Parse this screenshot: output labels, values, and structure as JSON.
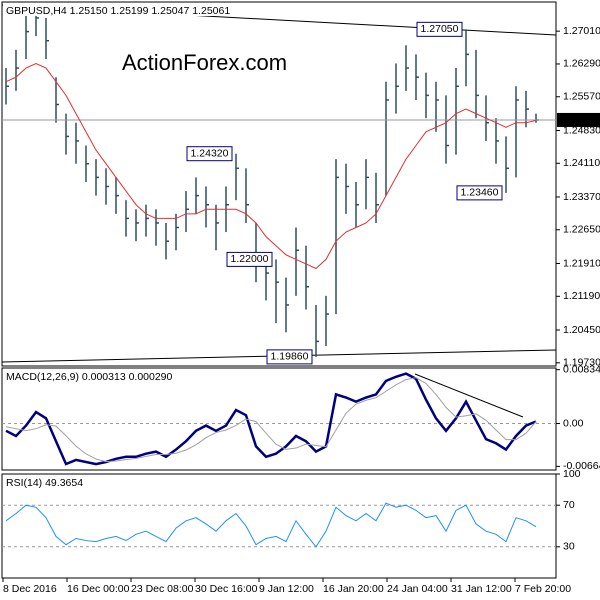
{
  "chart_data": [
    {
      "type": "hlc",
      "title": "GBPUSD,H4  1.25150 1.25199 1.25047 1.25061",
      "watermark": "ActionForex.com",
      "hlc": {
        "color": "#2f4f5f",
        "high": [
          1.262,
          1.266,
          1.274,
          1.276,
          1.273,
          1.26,
          1.252,
          1.25,
          1.245,
          1.242,
          1.24,
          1.238,
          1.233,
          1.231,
          1.232,
          1.231,
          1.228,
          1.23,
          1.235,
          1.238,
          1.236,
          1.232,
          1.236,
          1.2432,
          1.24,
          1.228,
          1.221,
          1.22,
          1.216,
          1.227,
          1.223,
          1.21,
          1.212,
          1.242,
          1.241,
          1.237,
          1.242,
          1.239,
          1.259,
          1.263,
          1.267,
          1.265,
          1.261,
          1.259,
          1.256,
          1.262,
          1.2705,
          1.266,
          1.256,
          1.251,
          1.247,
          1.258,
          1.257,
          1.252
        ],
        "low": [
          1.254,
          1.257,
          1.264,
          1.269,
          1.264,
          1.25,
          1.243,
          1.241,
          1.237,
          1.234,
          1.232,
          1.23,
          1.225,
          1.224,
          1.225,
          1.223,
          1.22,
          1.222,
          1.226,
          1.23,
          1.227,
          1.222,
          1.226,
          1.233,
          1.228,
          1.215,
          1.211,
          1.206,
          1.204,
          1.212,
          1.209,
          1.1986,
          1.201,
          1.208,
          1.23,
          1.227,
          1.231,
          1.228,
          1.234,
          1.252,
          1.257,
          1.255,
          1.251,
          1.248,
          1.241,
          1.243,
          1.258,
          1.251,
          1.246,
          1.241,
          1.2346,
          1.238,
          1.249,
          1.25
        ],
        "close": [
          1.258,
          1.262,
          1.27,
          1.273,
          1.268,
          1.254,
          1.247,
          1.246,
          1.241,
          1.238,
          1.236,
          1.234,
          1.229,
          1.228,
          1.229,
          1.228,
          1.224,
          1.227,
          1.231,
          1.234,
          1.232,
          1.228,
          1.232,
          1.24,
          1.232,
          1.219,
          1.217,
          1.215,
          1.21,
          1.222,
          1.214,
          1.202,
          1.208,
          1.238,
          1.236,
          1.232,
          1.238,
          1.232,
          1.255,
          1.258,
          1.262,
          1.26,
          1.256,
          1.255,
          1.245,
          1.258,
          1.265,
          1.256,
          1.25,
          1.246,
          1.24,
          1.255,
          1.253,
          1.2506
        ]
      },
      "lines": [
        {
          "color": "#e03030",
          "values": [
            1.259,
            1.26,
            1.262,
            1.263,
            1.262,
            1.259,
            1.256,
            1.252,
            1.248,
            1.244,
            1.241,
            1.238,
            1.235,
            1.232,
            1.23,
            1.229,
            1.229,
            1.229,
            1.23,
            1.23,
            1.231,
            1.231,
            1.231,
            1.231,
            1.23,
            1.228,
            1.225,
            1.223,
            1.221,
            1.22,
            1.219,
            1.218,
            1.22,
            1.224,
            1.226,
            1.227,
            1.228,
            1.23,
            1.234,
            1.238,
            1.242,
            1.245,
            1.248,
            1.249,
            1.25,
            1.252,
            1.253,
            1.252,
            1.251,
            1.25,
            1.249,
            1.25,
            1.25,
            1.2505
          ]
        }
      ],
      "annotations": [
        {
          "value": 1.2705,
          "label": "1.27050"
        },
        {
          "value": 1.2432,
          "label": "1.24320"
        },
        {
          "value": 1.22,
          "label": "1.22000"
        },
        {
          "value": 1.2346,
          "label": "1.23460"
        },
        {
          "value": 1.1986,
          "label": "1.19860"
        }
      ],
      "last_price": {
        "value": 1.25061,
        "label": "1.25061"
      },
      "ylim": [
        1.1966,
        1.2765
      ],
      "yticks": [
        {
          "value": 1.2701,
          "label": "1.27010"
        },
        {
          "value": 1.2629,
          "label": "1.26290"
        },
        {
          "value": 1.2557,
          "label": "1.25570"
        },
        {
          "value": 1.2483,
          "label": "1.24830"
        },
        {
          "value": 1.2411,
          "label": "1.24110"
        },
        {
          "value": 1.2337,
          "label": "1.23370"
        },
        {
          "value": 1.2265,
          "label": "1.22650"
        },
        {
          "value": 1.2191,
          "label": "1.21910"
        },
        {
          "value": 1.2119,
          "label": "1.21190"
        },
        {
          "value": 1.2045,
          "label": "1.20450"
        },
        {
          "value": 1.1973,
          "label": "1.19730"
        }
      ]
    },
    {
      "type": "line",
      "title": "MACD(12,26,9) 0.000313 0.000290",
      "lines": [
        {
          "color": "#000080",
          "values": [
            -0.00113,
            -0.00193,
            -0.00032,
            0.00177,
            0.00081,
            -0.00274,
            -0.00628,
            -0.00564,
            -0.00596,
            -0.00628,
            -0.00596,
            -0.00547,
            -0.00515,
            -0.00515,
            -0.00467,
            -0.00435,
            -0.00515,
            -0.00403,
            -0.00274,
            -0.00113,
            -0.00032,
            -0.00113,
            -0.00032,
            0.00209,
            0.00129,
            -0.00354,
            -0.00515,
            -0.00467,
            -0.00354,
            -0.00193,
            -0.00274,
            -0.00435,
            -0.00354,
            0.00451,
            0.00403,
            0.00338,
            0.00403,
            0.00451,
            0.0066,
            0.00724,
            0.00773,
            0.00692,
            0.0037,
            0.00081,
            -0.00113,
            0.00081,
            0.00338,
            0.00048,
            -0.00242,
            -0.00306,
            -0.00403,
            -0.00193,
            -0.00032,
            0.000313
          ]
        },
        {
          "color": "#a0a0a0",
          "values": [
            -0.0005,
            -0.0008,
            -0.0011,
            -0.0008,
            -0.0002,
            -0.0004,
            -0.0019,
            -0.0035,
            -0.0047,
            -0.0055,
            -0.0059,
            -0.0058,
            -0.0056,
            -0.0054,
            -0.0051,
            -0.0048,
            -0.0048,
            -0.0046,
            -0.0041,
            -0.0033,
            -0.0022,
            -0.0014,
            -0.001,
            -0.0003,
            0.0007,
            0.0003,
            -0.0015,
            -0.0032,
            -0.004,
            -0.0038,
            -0.0032,
            -0.0034,
            -0.0036,
            -0.001,
            0.0016,
            0.003,
            0.0036,
            0.004,
            0.005,
            0.006,
            0.0068,
            0.0071,
            0.0062,
            0.0045,
            0.0025,
            0.001,
            0.0012,
            0.0015,
            0.0005,
            -0.001,
            -0.0025,
            -0.0025,
            -0.0015,
            0.00029
          ]
        }
      ],
      "levels": [
        0
      ],
      "ylim": [
        -0.0072,
        0.0086
      ],
      "yticks": [
        0.008341,
        {
          "value": 0,
          "label": "0.00"
        },
        -0.006641
      ]
    },
    {
      "type": "line",
      "title": "RSI(14) 49.3654",
      "lines": [
        {
          "color": "#1e90ff",
          "values": [
            55,
            62,
            70,
            68,
            58,
            40,
            32,
            38,
            36,
            35,
            38,
            40,
            36,
            42,
            45,
            40,
            35,
            48,
            55,
            58,
            52,
            45,
            55,
            62,
            50,
            32,
            38,
            40,
            35,
            55,
            42,
            30,
            45,
            68,
            60,
            55,
            62,
            55,
            72,
            68,
            70,
            65,
            58,
            60,
            45,
            65,
            70,
            52,
            45,
            42,
            35,
            58,
            55,
            49.3654
          ]
        }
      ],
      "levels": [
        70,
        30
      ],
      "ylim": [
        0,
        100
      ],
      "yticks": [
        100,
        70,
        30
      ],
      "xticks": [
        "8 Dec 2016",
        "16 Dec 00:00",
        "23 Dec 08:00",
        "30 Dec 16:00",
        "9 Jan 12:00",
        "16 Jan 20:00",
        "24 Jan 04:00",
        "31 Jan 12:00",
        "7 Feb 20:00"
      ]
    }
  ]
}
